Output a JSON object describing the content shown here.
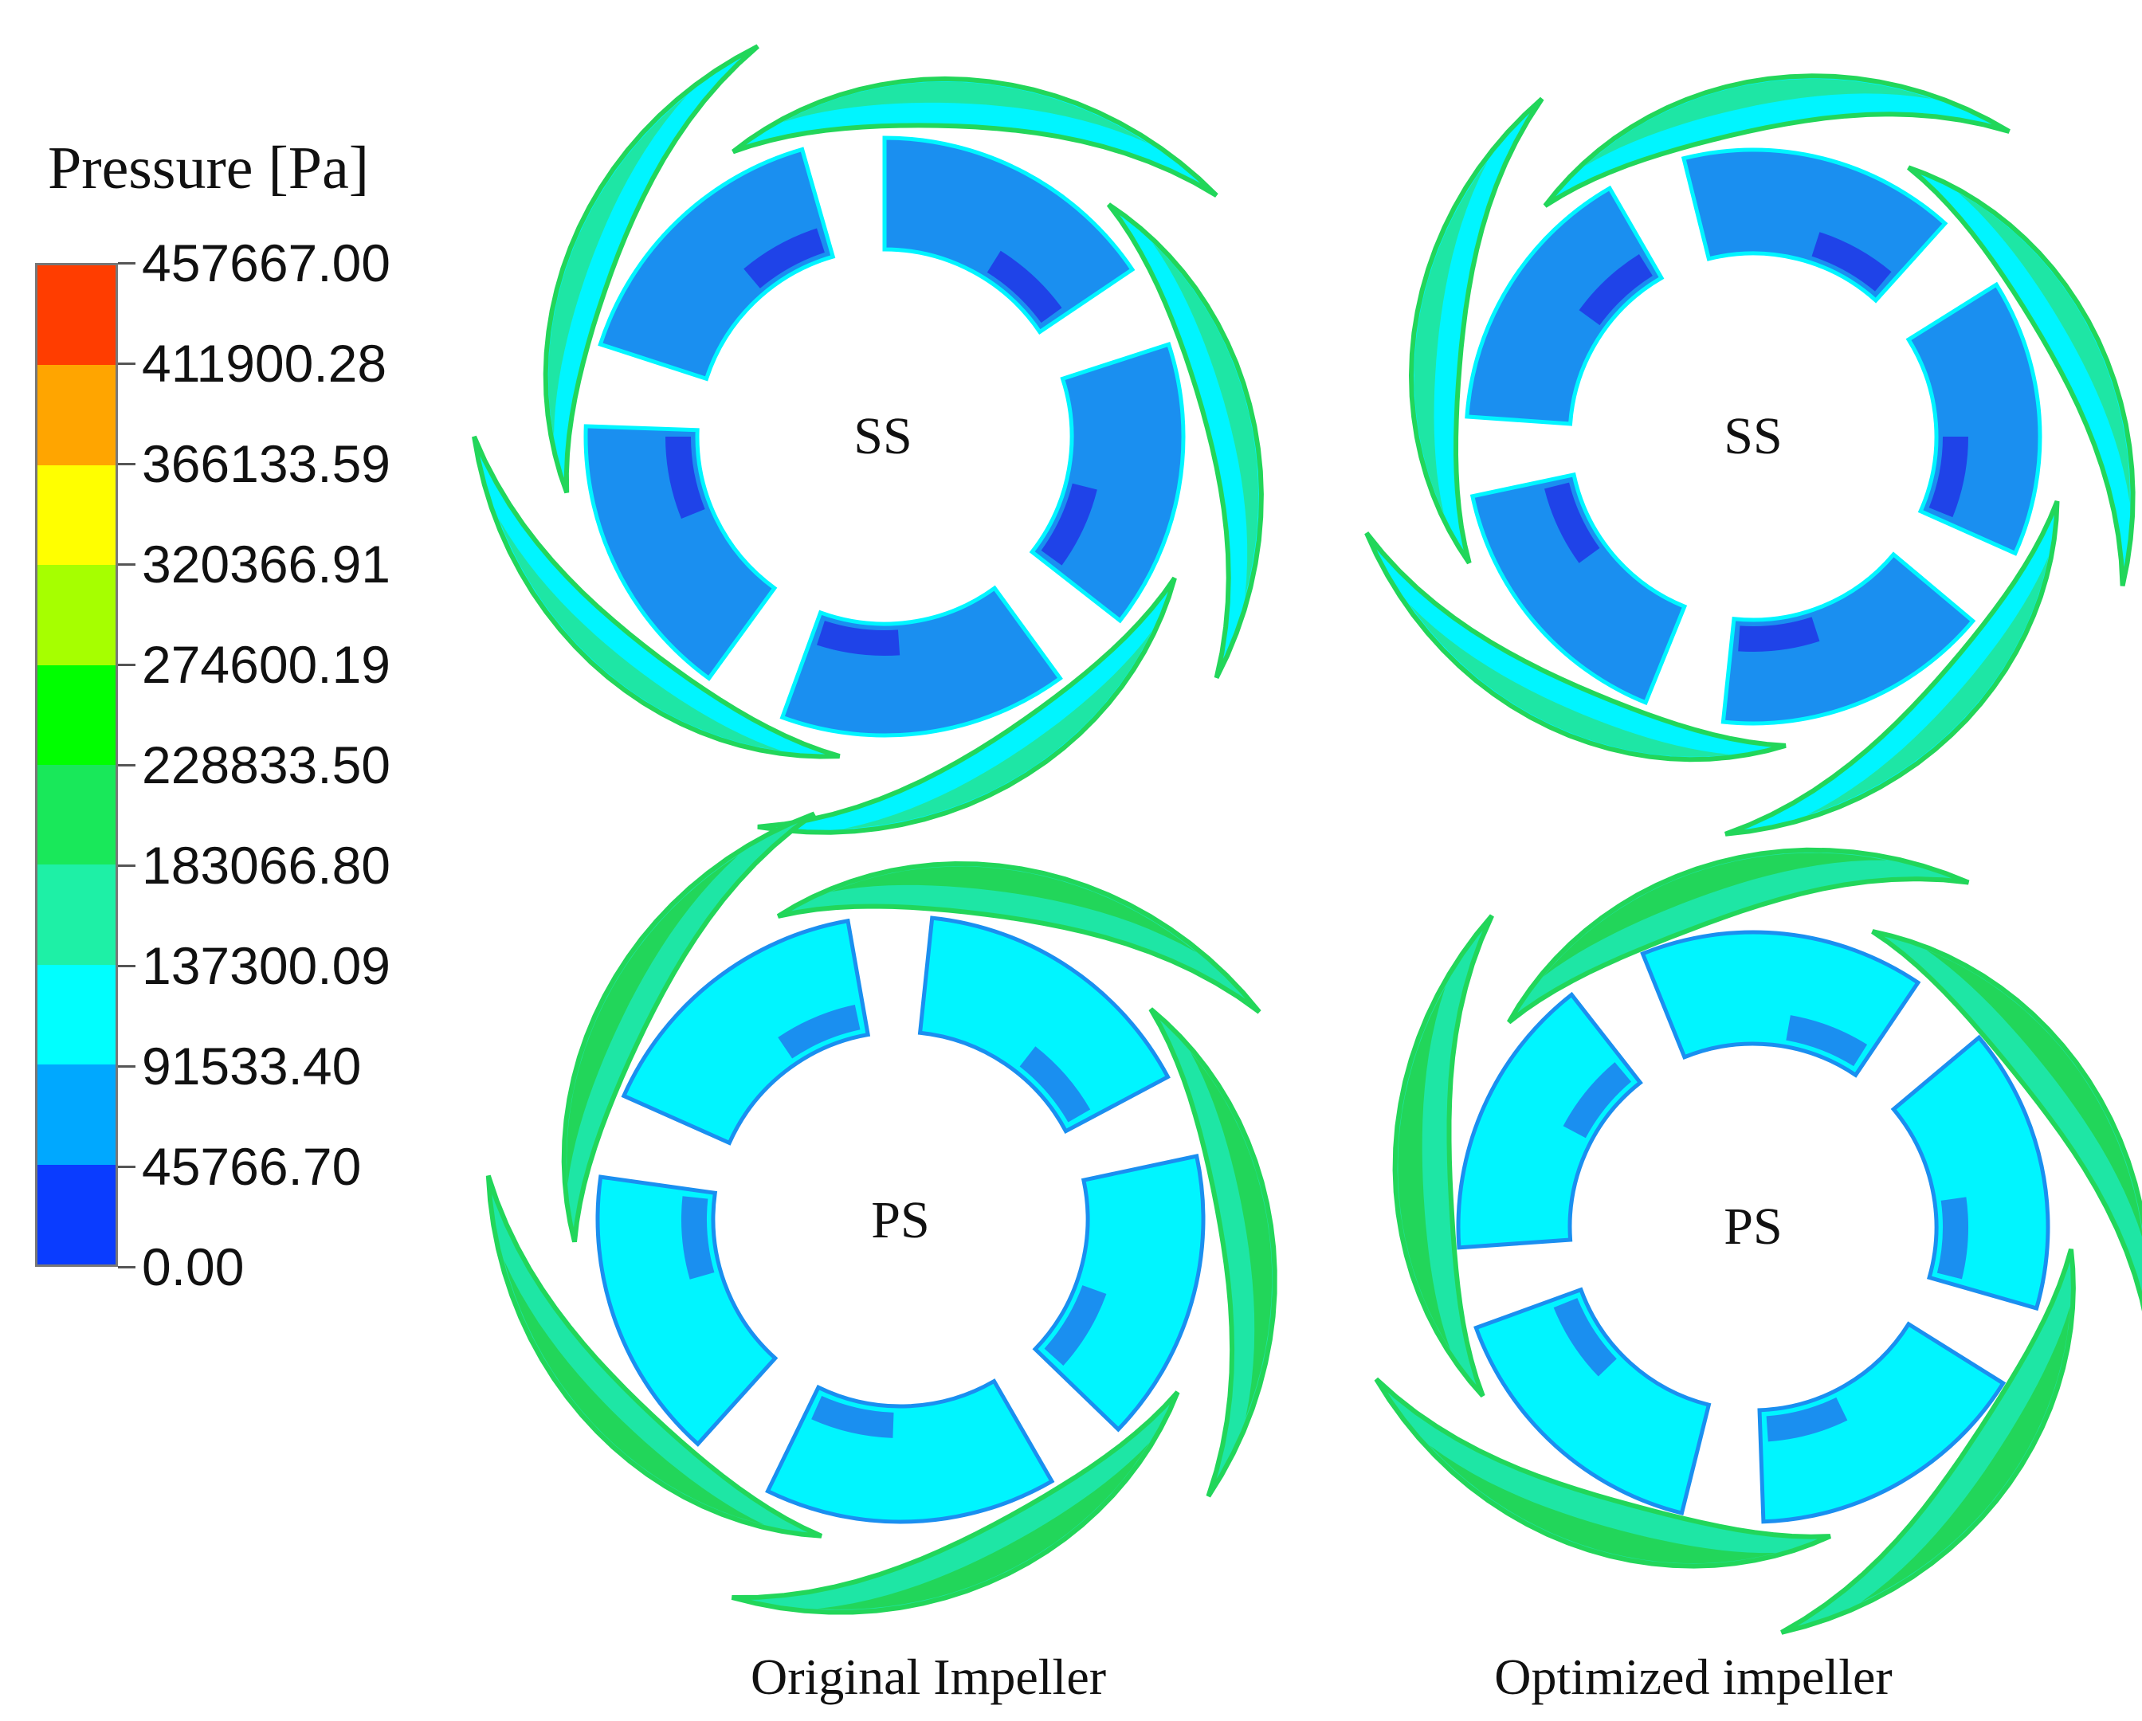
{
  "legend": {
    "title": "Pressure [Pa]",
    "tick_labels": [
      "457667.00",
      "411900.28",
      "366133.59",
      "320366.91",
      "274600.19",
      "228833.50",
      "183066.80",
      "137300.09",
      "91533.40",
      "45766.70",
      "0.00"
    ],
    "band_colors": [
      "#ff3d00",
      "#ffa500",
      "#ffff00",
      "#a6ff00",
      "#00ff00",
      "#19e85a",
      "#1ef0a6",
      "#00ffff",
      "#00a8ff",
      "#0a3cff"
    ]
  },
  "impellers": [
    {
      "side_label": "SS"
    },
    {
      "side_label": "SS"
    },
    {
      "side_label": "PS"
    },
    {
      "side_label": "PS"
    }
  ],
  "captions": {
    "original": "Original Impeller",
    "optimized": "Optimized impeller"
  },
  "palette": {
    "deep_blue": "#1f43e8",
    "mid_blue": "#1a8ff0",
    "cyan": "#00f5ff",
    "aqua_green": "#1ee6a5",
    "green": "#22d65a"
  }
}
